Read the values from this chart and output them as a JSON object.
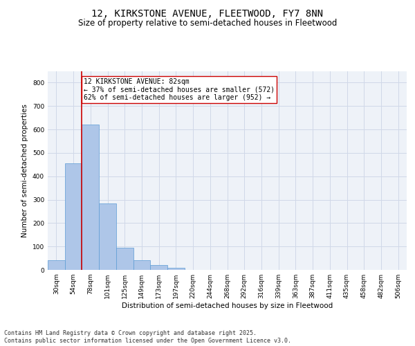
{
  "title_line1": "12, KIRKSTONE AVENUE, FLEETWOOD, FY7 8NN",
  "title_line2": "Size of property relative to semi-detached houses in Fleetwood",
  "xlabel": "Distribution of semi-detached houses by size in Fleetwood",
  "ylabel": "Number of semi-detached properties",
  "categories": [
    "30sqm",
    "54sqm",
    "78sqm",
    "101sqm",
    "125sqm",
    "149sqm",
    "173sqm",
    "197sqm",
    "220sqm",
    "244sqm",
    "268sqm",
    "292sqm",
    "316sqm",
    "339sqm",
    "363sqm",
    "387sqm",
    "411sqm",
    "435sqm",
    "458sqm",
    "482sqm",
    "506sqm"
  ],
  "values": [
    42,
    455,
    620,
    285,
    95,
    42,
    20,
    8,
    0,
    0,
    0,
    0,
    0,
    0,
    0,
    0,
    0,
    0,
    0,
    0,
    0
  ],
  "bar_color": "#aec6e8",
  "bar_edge_color": "#5b9bd5",
  "vline_color": "#cc0000",
  "annotation_text": "12 KIRKSTONE AVENUE: 82sqm\n← 37% of semi-detached houses are smaller (572)\n62% of semi-detached houses are larger (952) →",
  "annotation_box_color": "#ffffff",
  "annotation_box_edge_color": "#cc0000",
  "ylim": [
    0,
    850
  ],
  "yticks": [
    0,
    100,
    200,
    300,
    400,
    500,
    600,
    700,
    800
  ],
  "grid_color": "#d0d8e8",
  "background_color": "#eef2f8",
  "footer_text": "Contains HM Land Registry data © Crown copyright and database right 2025.\nContains public sector information licensed under the Open Government Licence v3.0.",
  "title_fontsize": 10,
  "subtitle_fontsize": 8.5,
  "axis_label_fontsize": 7.5,
  "tick_fontsize": 6.5,
  "annotation_fontsize": 7,
  "footer_fontsize": 6
}
